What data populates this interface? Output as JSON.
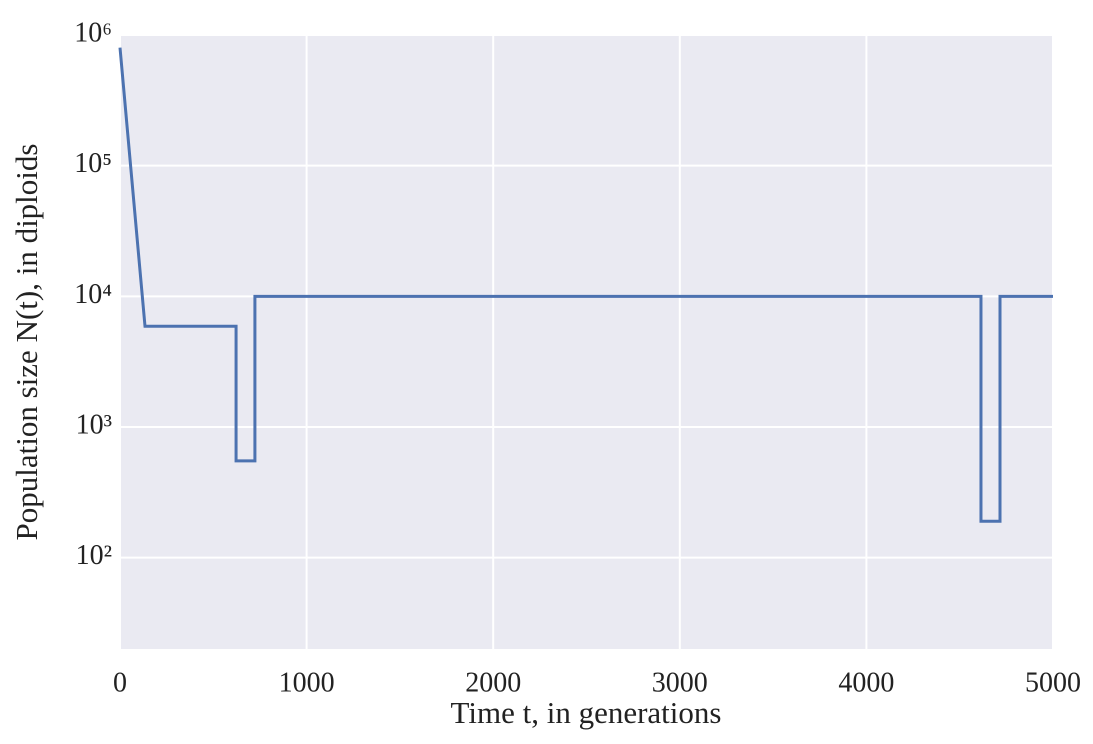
{
  "chart_data": {
    "type": "line",
    "x_label": "Time t, in generations",
    "y_label": "Population size N(t), in diploids",
    "yscale": "log",
    "grid": true,
    "background": "#eaeaf2",
    "series": [
      {
        "name": "N(t)",
        "color": "#4c72b0",
        "x": [
          0,
          134,
          622,
          622,
          723,
          723,
          4614,
          4614,
          4716,
          4716,
          5000
        ],
        "values": [
          800000,
          5900,
          5900,
          550,
          550,
          10000,
          10000,
          190,
          190,
          10000,
          10000
        ]
      }
    ],
    "xlim": [
      0,
      5000
    ],
    "xticks": [
      0,
      1000,
      2000,
      3000,
      4000,
      5000
    ],
    "ylim": [
      20,
      1000000
    ],
    "yticks": [
      {
        "value": 100,
        "label": "10²"
      },
      {
        "value": 1000,
        "label": "10³"
      },
      {
        "value": 10000,
        "label": "10⁴"
      },
      {
        "value": 100000,
        "label": "10⁵"
      },
      {
        "value": 1000000,
        "label": "10⁶"
      }
    ]
  }
}
